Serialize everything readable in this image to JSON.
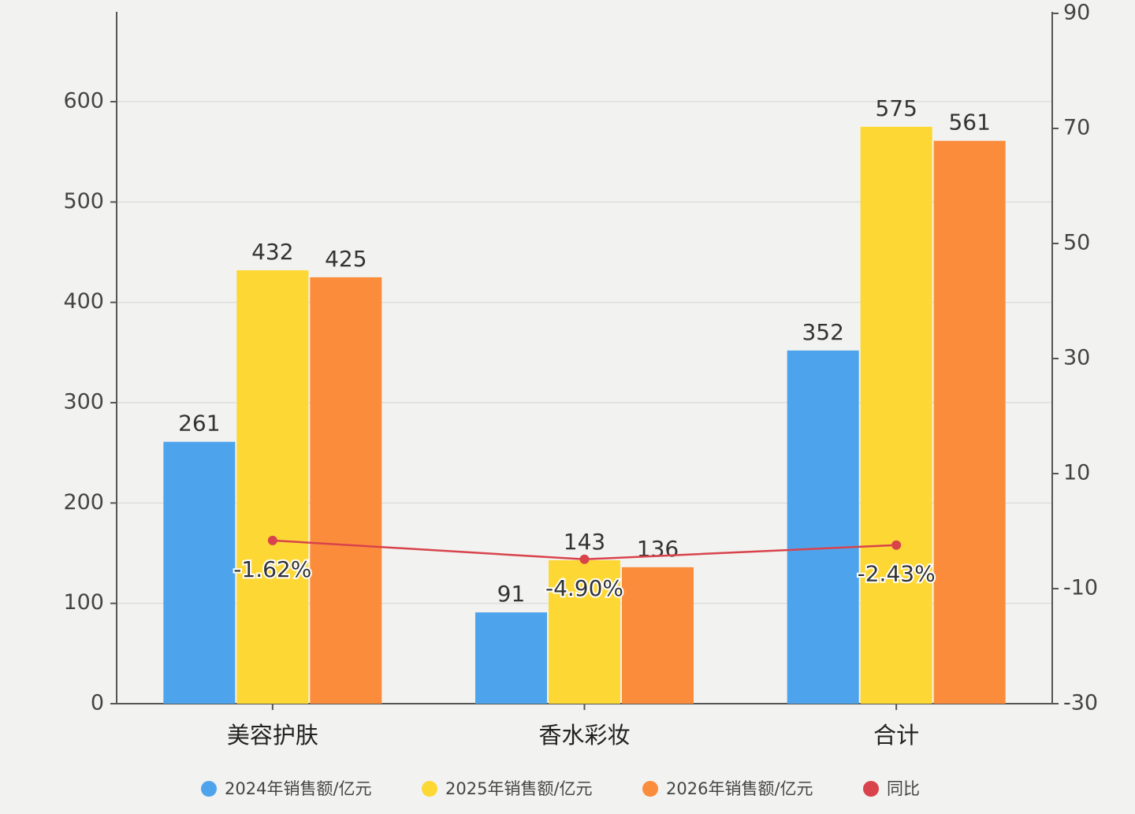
{
  "chart_data": {
    "type": "bar",
    "categories": [
      "美容护肤",
      "香水彩妆",
      "合计"
    ],
    "series": [
      {
        "name": "2024年销售额/亿元",
        "color": "#4ea4ec",
        "values": [
          261,
          91,
          352
        ]
      },
      {
        "name": "2025年销售额/亿元",
        "color": "#fdd835",
        "values": [
          432,
          143,
          575
        ]
      },
      {
        "name": "2026年销售额/亿元",
        "color": "#fb8c3c",
        "values": [
          425,
          136,
          561
        ]
      },
      {
        "name": "同比",
        "type": "line",
        "axis": "y2",
        "color": "#d8434c",
        "values": [
          -1.62,
          -4.9,
          -2.43
        ],
        "value_labels": [
          "-1.62%",
          "-4.90%",
          "-2.43%"
        ]
      }
    ],
    "ylim": [
      0,
      688
    ],
    "yticks": [
      0,
      100,
      200,
      300,
      400,
      500,
      600
    ],
    "y2lim": [
      -30,
      90
    ],
    "y2ticks": [
      -30,
      -10,
      10,
      30,
      50,
      70,
      90
    ],
    "grid": true,
    "legend": "bottom"
  }
}
